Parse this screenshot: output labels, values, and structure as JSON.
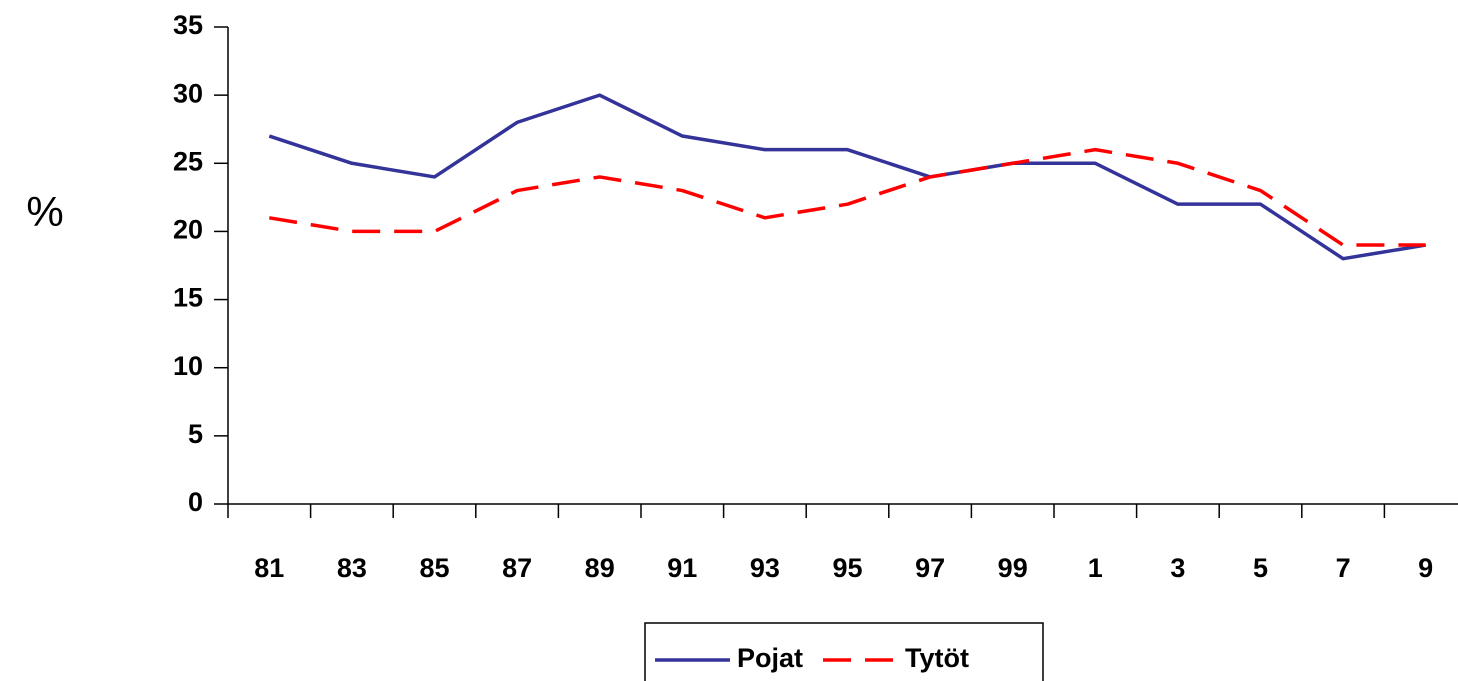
{
  "chart_data": {
    "type": "line",
    "ylabel": "%",
    "categories": [
      "81",
      "83",
      "85",
      "87",
      "89",
      "91",
      "93",
      "95",
      "97",
      "99",
      "1",
      "3",
      "5",
      "7",
      "9"
    ],
    "series": [
      {
        "name": "Pojat",
        "color": "#333399",
        "values": [
          27,
          25,
          24,
          28,
          30,
          27,
          26,
          26,
          24,
          25,
          25,
          22,
          22,
          18,
          19
        ]
      },
      {
        "name": "Tytöt",
        "color": "#ff0000",
        "dashed": true,
        "values": [
          21,
          20,
          20,
          23,
          24,
          23,
          21,
          22,
          24,
          25,
          26,
          25,
          23,
          19,
          19
        ]
      }
    ],
    "ylim": [
      0,
      35
    ],
    "yticks": [
      0,
      5,
      10,
      15,
      20,
      25,
      30,
      35
    ],
    "legend": "bottom"
  }
}
